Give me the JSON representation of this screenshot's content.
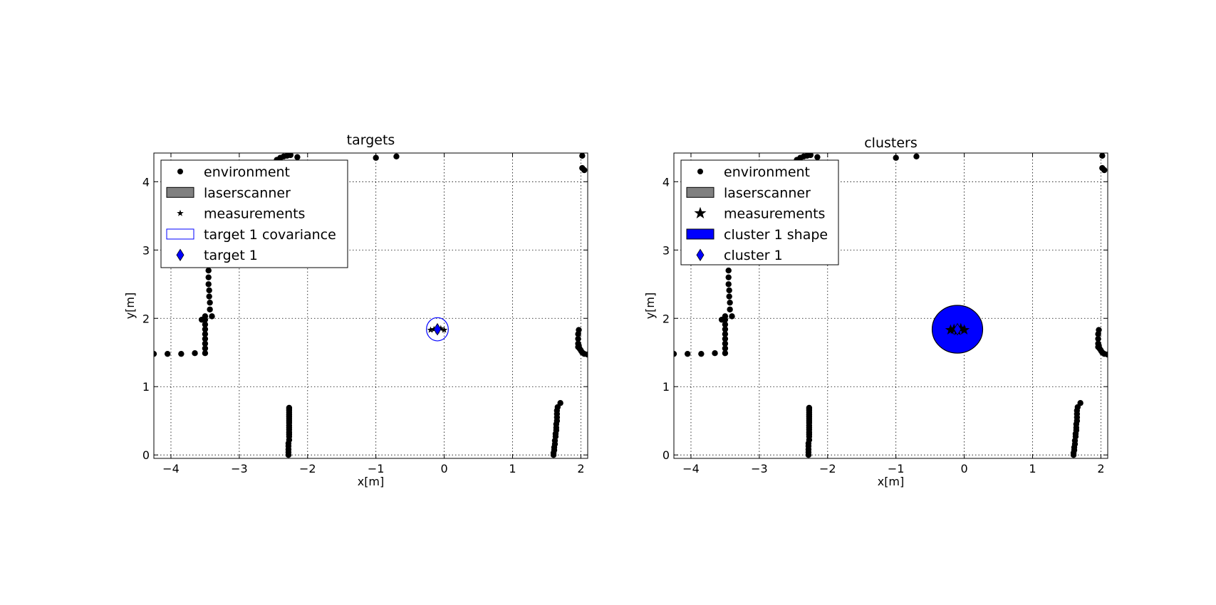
{
  "chart_data": [
    {
      "type": "scatter",
      "title": "targets",
      "xlabel": "x[m]",
      "ylabel": "y[m]",
      "xlim": [
        -4.25,
        2.1
      ],
      "ylim": [
        -0.05,
        4.42
      ],
      "xticks": [
        -4,
        -3,
        -2,
        -1,
        0,
        1,
        2
      ],
      "yticks": [
        0,
        1,
        2,
        3,
        4
      ],
      "grid": true,
      "legend_position": "top-left",
      "legend": [
        {
          "label": "environment",
          "marker": "dot"
        },
        {
          "label": "laserscanner",
          "marker": "gray-rect"
        },
        {
          "label": "measurements",
          "marker": "small-star"
        },
        {
          "label": "target 1 covariance",
          "marker": "blue-outline-rect"
        },
        {
          "label": "target 1",
          "marker": "blue-diamond"
        }
      ],
      "measurements": {
        "x": [
          -0.2,
          -0.15,
          -0.1,
          -0.05,
          0.0
        ],
        "y": [
          1.83,
          1.84,
          1.82,
          1.85,
          1.83
        ]
      },
      "target": {
        "x": -0.1,
        "y": 1.84
      },
      "covariance": {
        "cx": -0.1,
        "cy": 1.84,
        "rx": 0.16,
        "ry": 0.17,
        "fill": "none",
        "color": "#0000ff"
      }
    },
    {
      "type": "scatter",
      "title": "clusters",
      "xlabel": "x[m]",
      "ylabel": "y[m]",
      "xlim": [
        -4.25,
        2.1
      ],
      "ylim": [
        -0.05,
        4.42
      ],
      "xticks": [
        -4,
        -3,
        -2,
        -1,
        0,
        1,
        2
      ],
      "yticks": [
        0,
        1,
        2,
        3,
        4
      ],
      "grid": true,
      "legend_position": "top-left",
      "legend": [
        {
          "label": "environment",
          "marker": "dot"
        },
        {
          "label": "laserscanner",
          "marker": "gray-rect"
        },
        {
          "label": "measurements",
          "marker": "large-star"
        },
        {
          "label": "cluster 1 shape",
          "marker": "blue-filled-rect"
        },
        {
          "label": "cluster 1",
          "marker": "blue-diamond"
        }
      ],
      "measurements": {
        "x": [
          -0.2,
          -0.15,
          -0.1,
          -0.05,
          0.0
        ],
        "y": [
          1.83,
          1.84,
          1.82,
          1.85,
          1.83
        ]
      },
      "target": {
        "x": -0.1,
        "y": 1.84
      },
      "covariance": {
        "cx": -0.1,
        "cy": 1.84,
        "rx": 0.37,
        "ry": 0.35,
        "fill": "#0000ff",
        "color": "#000000"
      }
    }
  ],
  "environment": {
    "x": [
      -4.25,
      -4.05,
      -3.85,
      -3.65,
      -3.5,
      -3.5,
      -3.5,
      -3.5,
      -3.5,
      -3.5,
      -3.5,
      -3.5,
      -3.55,
      -3.5,
      -3.4,
      -3.43,
      -3.43,
      -3.44,
      -3.44,
      -3.45,
      -3.45,
      -3.45,
      -2.45,
      -2.4,
      -2.35,
      -2.3,
      -2.25,
      -2.15,
      -1.0,
      -0.7,
      2.02,
      2.02,
      2.05,
      -2.28,
      -2.28,
      -2.28,
      -2.28,
      -2.28,
      -2.27,
      -2.27,
      -2.27,
      -2.27,
      -2.27,
      -2.27,
      -2.27,
      -2.27,
      -2.27,
      -2.27,
      -2.27,
      -2.27,
      -2.27,
      -2.27,
      -2.27,
      -2.27,
      1.6,
      1.6,
      1.61,
      1.61,
      1.62,
      1.62,
      1.63,
      1.63,
      1.64,
      1.64,
      1.64,
      1.65,
      1.65,
      1.65,
      1.65,
      1.66,
      1.7,
      1.96,
      1.96,
      1.96,
      1.96,
      1.97,
      1.97,
      1.98,
      2.0,
      2.02,
      2.05,
      2.1
    ],
    "y": [
      1.48,
      1.48,
      1.48,
      1.49,
      1.49,
      1.56,
      1.63,
      1.7,
      1.77,
      1.84,
      1.91,
      1.98,
      1.98,
      2.03,
      2.03,
      2.13,
      2.23,
      2.32,
      2.41,
      2.5,
      2.6,
      2.7,
      4.32,
      4.35,
      4.37,
      4.38,
      4.39,
      4.36,
      4.35,
      4.37,
      4.38,
      4.2,
      4.17,
      0.0,
      0.04,
      0.08,
      0.13,
      0.17,
      0.22,
      0.27,
      0.3,
      0.33,
      0.37,
      0.4,
      0.43,
      0.47,
      0.5,
      0.53,
      0.56,
      0.59,
      0.62,
      0.65,
      0.67,
      0.69,
      0.0,
      0.03,
      0.07,
      0.11,
      0.16,
      0.21,
      0.27,
      0.31,
      0.36,
      0.4,
      0.45,
      0.5,
      0.55,
      0.6,
      0.65,
      0.7,
      0.76,
      1.58,
      1.63,
      1.7,
      1.77,
      1.83,
      1.6,
      1.56,
      1.53,
      1.5,
      1.48,
      1.47
    ]
  }
}
